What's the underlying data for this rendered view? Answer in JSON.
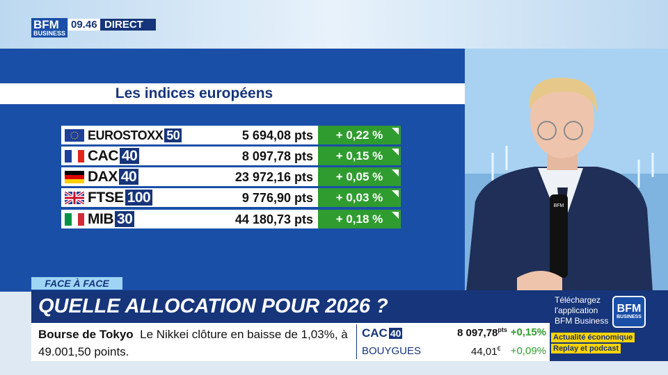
{
  "header": {
    "logo_top": "BFM",
    "logo_bottom": "BUSINESS",
    "time": "09.46",
    "live": "DIRECT"
  },
  "panel": {
    "title": "Les indices européens",
    "rows": [
      {
        "name": "EUROSTOXX",
        "badge": "50",
        "value": "5 694,08 pts",
        "change": "+ 0,22 %"
      },
      {
        "name": "CAC",
        "badge": "40",
        "value": "8 097,78 pts",
        "change": "+ 0,15 %"
      },
      {
        "name": "DAX",
        "badge": "40",
        "value": "23 972,16 pts",
        "change": "+ 0,05 %"
      },
      {
        "name": "FTSE",
        "badge": "100",
        "value": "9 776,90 pts",
        "change": "+ 0,03 %"
      },
      {
        "name": "MIB",
        "badge": "30",
        "value": "44 180,73 pts",
        "change": "+ 0,18 %"
      }
    ]
  },
  "banner": {
    "tag": "FACE À FACE",
    "headline": "QUELLE ALLOCATION POUR 2026 ?"
  },
  "ticker": {
    "source": "Bourse de Tokyo",
    "text": "Le Nikkei clôture en baisse de 1,03%, à 49.001,50 points."
  },
  "market": [
    {
      "name": "CAC",
      "badge": "40",
      "value": "8 097,78",
      "unit": "pts",
      "change": "+0,15%"
    },
    {
      "name": "BOUYGUES",
      "value": "44,01",
      "unit": "€",
      "change": "+0,09%"
    }
  ],
  "promo": {
    "text": "Téléchargez l'application BFM Business",
    "logo_top": "BFM",
    "logo_bottom": "BUSINESS",
    "tag1": "Actualité économique",
    "tag2": "Replay et podcast"
  }
}
